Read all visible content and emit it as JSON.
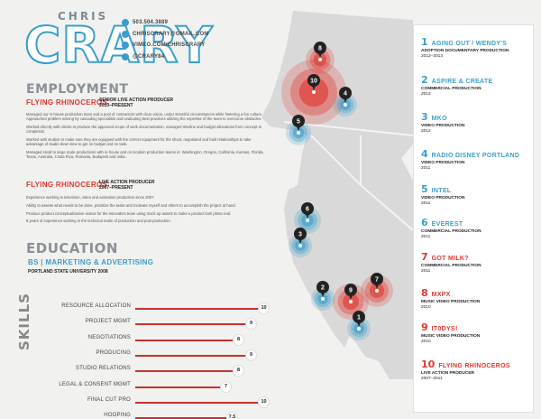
{
  "header": {
    "first_name": "CHRIS",
    "last_name": "CRARY",
    "contact": [
      {
        "icon": "phone-icon",
        "text": "503.504.3889"
      },
      {
        "icon": "mail-icon",
        "text": "CHRISCRARY@GMAIL.COM"
      },
      {
        "icon": "vimeo-icon",
        "text": "VIMEO.COM/CHRISCRARY"
      },
      {
        "icon": "twitter-icon",
        "text": "@CRARY84"
      }
    ]
  },
  "employment": {
    "heading": "EMPLOYMENT",
    "jobs": [
      {
        "company": "FLYING RHINOCEROS",
        "role": "SENIOR LIVE ACTION PRODUCER",
        "dates": "2010–PRESENT",
        "bullets": [
          "Managed our in-house production team and a pool of contractors with clear vision, under stressful circumstances while fostering a fun culture. Approached problem solving by cascading specialists and evaluating best practices utilizing the expertise of the team to overcome obstacles.",
          "Worked directly with clients to produce the approved scope of work documentation, managed timeline and budget allocations from concept to completion.",
          "Worked with studios to make sure they are equipped with the correct equipment for the shoot, negotiated and built relationships to take advantage of studio down time to get on budget and on task.",
          "Managed small to large scale productions with in-house and on location production teams in: Washington, Oregon, California, Kansas, Florida, Texas, Australia, Costa Rica, Romania, Budapest and India."
        ]
      },
      {
        "company": "FLYING RHINOCEROS",
        "role": "LIVE ACTION PRODUCER",
        "dates": "2007–PRESENT",
        "bullets": [
          "Experience working in television, video and animation production since 2007.",
          "Ability to assess what needs to be done, prioritize the tasks and motivate myself and others to accomplish the project at hand.",
          "Produce product conceptualization videos for the innovation team using mock up assets to make a product look photo real.",
          "8 years of experience working in the technical realm of production and post production."
        ]
      }
    ]
  },
  "education": {
    "heading": "EDUCATION",
    "degree": "BS",
    "sep": "|",
    "field": "MARKETING & ADVERTISING",
    "school": "PORTLAND STATE UNIVERSITY 2008"
  },
  "skills": {
    "heading": "SKILLS",
    "max": 10,
    "items": [
      {
        "label": "RESOURCE ALLOCATION",
        "value": 10
      },
      {
        "label": "PROJECT MGMT",
        "value": 9
      },
      {
        "label": "NEGOTIATIONS",
        "value": 8
      },
      {
        "label": "PRODUCING",
        "value": 9
      },
      {
        "label": "STUDIO RELATIONS",
        "value": 8
      },
      {
        "label": "LEGAL & CONSENT MGMT",
        "value": 7
      },
      {
        "label": "FINAL CUT PRO",
        "value": 10
      },
      {
        "label": "HOOPING",
        "value": 7.5
      }
    ]
  },
  "projects": [
    {
      "num": "1",
      "title": "AGING OUT / WENDY'S",
      "sub": "ADOPTION DOCUMENTARY PRODUCTION",
      "year": "2012–2013",
      "accent": "blue"
    },
    {
      "num": "2",
      "title": "ASPIRE & CREATE",
      "sub": "COMMERCIAL PRODUCTION",
      "year": "2012",
      "accent": "blue"
    },
    {
      "num": "3",
      "title": "MKO",
      "sub": "VIDEO PRODUCTION",
      "year": "2012",
      "accent": "blue"
    },
    {
      "num": "4",
      "title": "RADIO DISNEY PORTLAND",
      "sub": "VIDEO PRODUCTION",
      "year": "2011",
      "accent": "blue"
    },
    {
      "num": "5",
      "title": "INTEL",
      "sub": "VIDEO PRODUCTION",
      "year": "2011",
      "accent": "blue"
    },
    {
      "num": "6",
      "title": "EVEREST",
      "sub": "COMMERCIAL PRODUCTION",
      "year": "2011",
      "accent": "blue"
    },
    {
      "num": "7",
      "title": "GOT MILK?",
      "sub": "COMMERCIAL PRODUCTION",
      "year": "2011",
      "accent": "red"
    },
    {
      "num": "8",
      "title": "MXPX",
      "sub": "MUSIC VIDEO PRODUCTION",
      "year": "2010",
      "accent": "red"
    },
    {
      "num": "9",
      "title": "IT0DYS!",
      "sub": "MUSIC VIDEO PRODUCTION",
      "year": "2010",
      "accent": "red"
    },
    {
      "num": "10",
      "title": "FLYING RHINOCEROS",
      "sub": "LIVE ACTION PRODUCER",
      "year": "2007–2011",
      "accent": "red"
    }
  ],
  "map_markers": [
    "10",
    "8",
    "4",
    "5",
    "6",
    "3",
    "2",
    "9",
    "7",
    "1"
  ],
  "colors": {
    "blue": "#3b9fca",
    "red": "#e1352e",
    "grey": "#8a9197"
  }
}
